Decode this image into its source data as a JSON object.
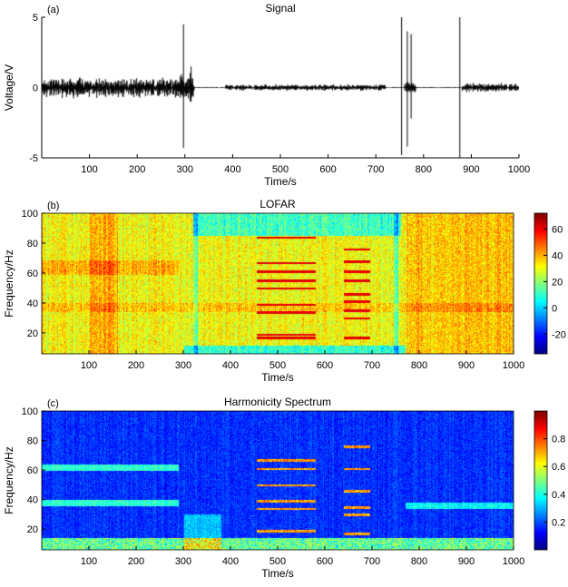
{
  "chart_data": [
    {
      "type": "line",
      "panel_label": "(a)",
      "title": "Signal",
      "xlabel": "Time/s",
      "ylabel": "Voltage/V",
      "xlim": [
        0,
        1000
      ],
      "ylim": [
        -5,
        5
      ],
      "xticks": [
        100,
        200,
        300,
        400,
        500,
        600,
        700,
        800,
        900,
        1000
      ],
      "yticks": [
        -5,
        0,
        5
      ],
      "segments": [
        {
          "range": [
            0,
            290
          ],
          "amplitude": 0.8
        },
        {
          "range": [
            290,
            320
          ],
          "amplitude": 1.2
        },
        {
          "range": [
            385,
            720
          ],
          "amplitude": 0.25
        },
        {
          "range": [
            760,
            785
          ],
          "amplitude": 0.5
        },
        {
          "range": [
            880,
            1000
          ],
          "amplitude": 0.35
        }
      ],
      "spikes": [
        {
          "t": 297,
          "max": 4.5,
          "min": -4.3
        },
        {
          "t": 313,
          "max": 1.5,
          "min": -1.0
        },
        {
          "t": 754,
          "max": 5.0,
          "min": -4.8
        },
        {
          "t": 766,
          "max": 4.0,
          "min": -4.2
        },
        {
          "t": 774,
          "max": 3.8,
          "min": -2.2
        },
        {
          "t": 876,
          "max": 5.0,
          "min": -5.0
        }
      ],
      "color": "#000000"
    },
    {
      "type": "heatmap",
      "panel_label": "(b)",
      "title": "LOFAR",
      "xlabel": "Time/s",
      "ylabel": "Frequency/Hz",
      "xlim": [
        0,
        1000
      ],
      "ylim": [
        6,
        100
      ],
      "xticks": [
        100,
        200,
        300,
        400,
        500,
        600,
        700,
        800,
        900,
        1000
      ],
      "yticks": [
        20,
        40,
        60,
        80,
        100
      ],
      "colorbar": {
        "range": [
          -35,
          72
        ],
        "ticks": [
          -20,
          0,
          20,
          40,
          60
        ],
        "colormap": "jet"
      },
      "lines": [
        {
          "t": [
            455,
            580
          ],
          "f": [
            84,
            67,
            61,
            55,
            50,
            39,
            34,
            19,
            17
          ]
        },
        {
          "t": [
            640,
            695
          ],
          "f": [
            76,
            68,
            61,
            55,
            46,
            41,
            35,
            30,
            17
          ]
        }
      ]
    },
    {
      "type": "heatmap",
      "panel_label": "(c)",
      "title": "Harmonicity Spectrum",
      "xlabel": "Time/s",
      "ylabel": "Frequency/Hz",
      "xlim": [
        0,
        1000
      ],
      "ylim": [
        6,
        100
      ],
      "xticks": [
        100,
        200,
        300,
        400,
        500,
        600,
        700,
        800,
        900,
        1000
      ],
      "yticks": [
        20,
        40,
        60,
        80,
        100
      ],
      "colorbar": {
        "range": [
          0,
          1
        ],
        "ticks": [
          0.2,
          0.4,
          0.6,
          0.8
        ],
        "colormap": "jet"
      },
      "lines": [
        {
          "t": [
            455,
            580
          ],
          "f": [
            67,
            61,
            50,
            39,
            34,
            19
          ]
        },
        {
          "t": [
            640,
            695
          ],
          "f": [
            76,
            61,
            46,
            35,
            30,
            17
          ]
        }
      ]
    }
  ]
}
